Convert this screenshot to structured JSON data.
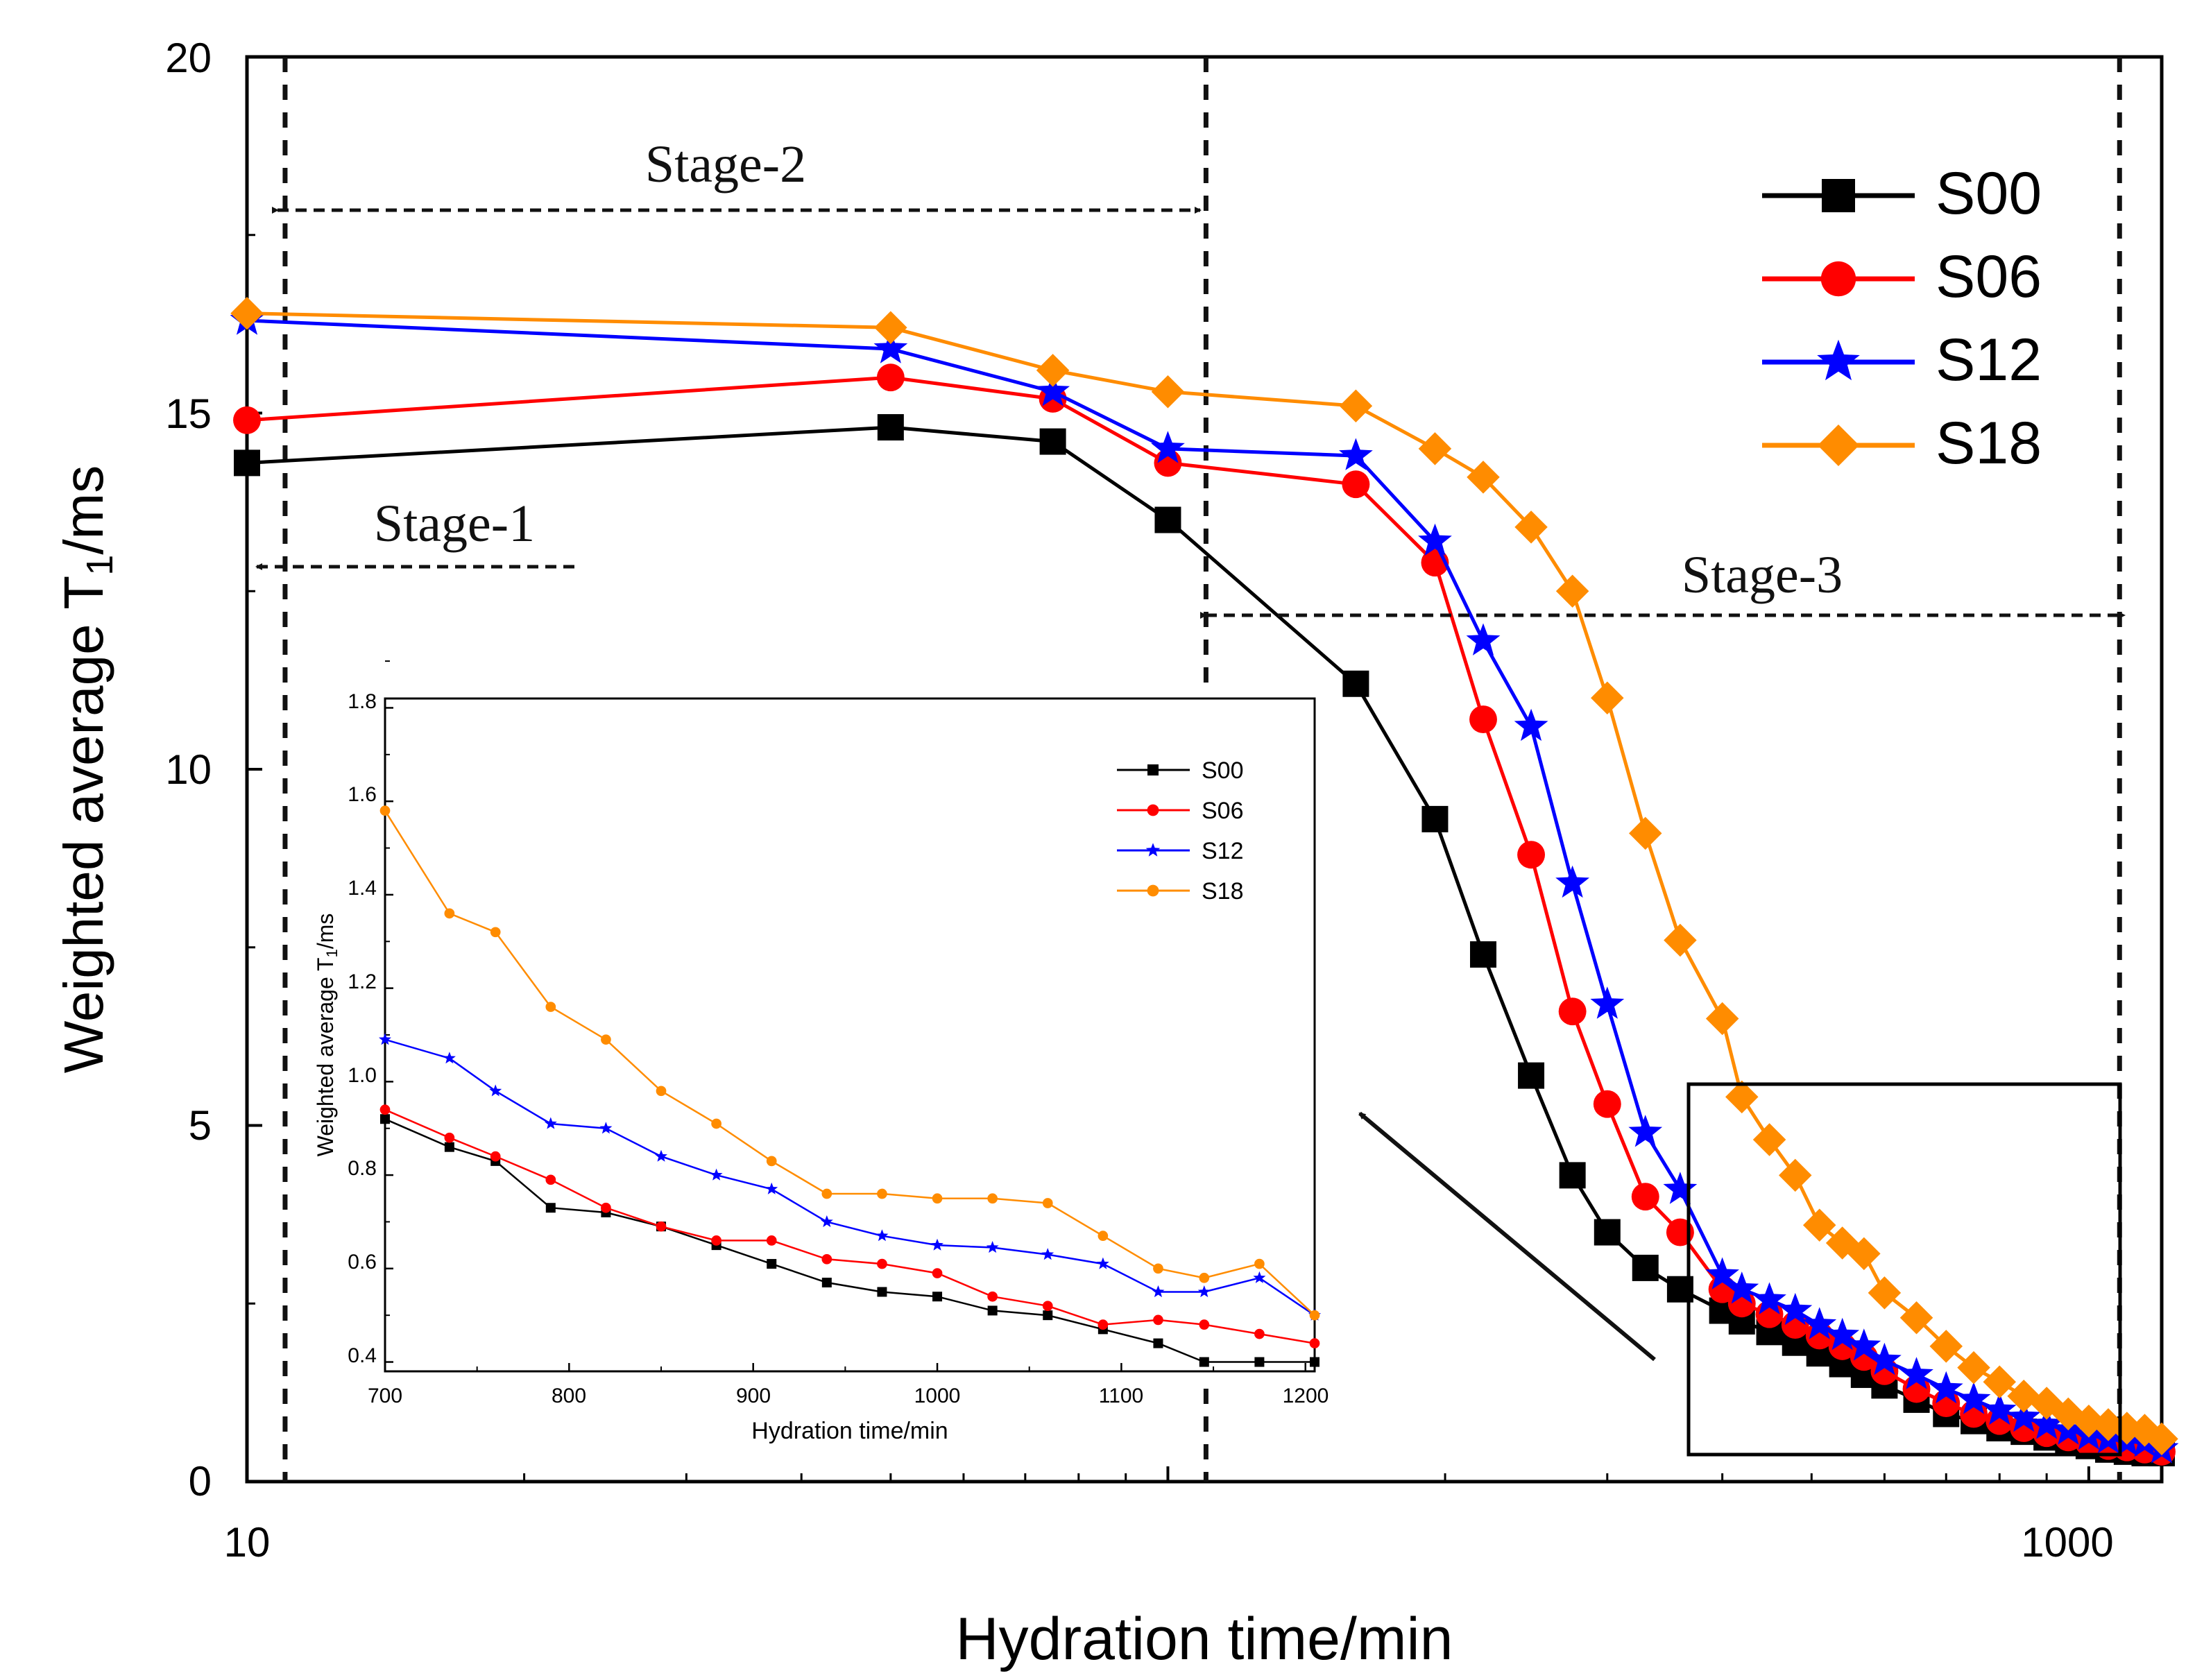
{
  "main": {
    "type": "line",
    "xscale": "log",
    "xlim": [
      10,
      1200
    ],
    "ylim": [
      0,
      20
    ],
    "xlabel": "Hydration time/min",
    "ylabel_main": "Weighted average T",
    "ylabel_sub": "1",
    "ylabel_unit": "/ms",
    "xticks": [
      10,
      1000
    ],
    "xtick_labels": [
      "10",
      "1000"
    ],
    "yticks": [
      0,
      5,
      10,
      15,
      20
    ],
    "ytick_labels": [
      "0",
      "5",
      "10",
      "15",
      "20"
    ],
    "legend_position": "top-right",
    "series": [
      {
        "name": "S00",
        "color": "#000000",
        "marker": "square",
        "x": [
          10,
          50,
          75,
          100,
          160,
          195,
          220,
          248,
          275,
          300,
          330,
          360,
          400,
          420,
          450,
          480,
          510,
          540,
          570,
          600,
          650,
          700,
          750,
          800,
          850,
          900,
          950,
          1000,
          1050,
          1100,
          1150,
          1200
        ],
        "y": [
          14.3,
          14.8,
          14.6,
          13.5,
          11.2,
          9.3,
          7.4,
          5.7,
          4.3,
          3.5,
          3.0,
          2.7,
          2.4,
          2.25,
          2.1,
          1.95,
          1.8,
          1.65,
          1.5,
          1.35,
          1.15,
          0.95,
          0.85,
          0.75,
          0.7,
          0.62,
          0.55,
          0.5,
          0.45,
          0.42,
          0.4,
          0.4
        ]
      },
      {
        "name": "S06",
        "color": "#ff0000",
        "marker": "circle",
        "x": [
          10,
          50,
          75,
          100,
          160,
          195,
          220,
          248,
          275,
          300,
          330,
          360,
          400,
          420,
          450,
          480,
          510,
          540,
          570,
          600,
          650,
          700,
          750,
          800,
          850,
          900,
          950,
          1000,
          1050,
          1100,
          1150,
          1200
        ],
        "y": [
          14.9,
          15.5,
          15.2,
          14.3,
          14.0,
          12.9,
          10.7,
          8.8,
          6.6,
          5.3,
          4.0,
          3.5,
          2.7,
          2.5,
          2.35,
          2.2,
          2.05,
          1.9,
          1.75,
          1.55,
          1.3,
          1.1,
          0.95,
          0.85,
          0.75,
          0.68,
          0.62,
          0.55,
          0.5,
          0.48,
          0.45,
          0.42
        ]
      },
      {
        "name": "S12",
        "color": "#0000ff",
        "marker": "star",
        "x": [
          10,
          50,
          75,
          100,
          160,
          195,
          220,
          248,
          275,
          300,
          330,
          360,
          400,
          420,
          450,
          480,
          510,
          540,
          570,
          600,
          650,
          700,
          750,
          800,
          850,
          900,
          950,
          1000,
          1050,
          1100,
          1150,
          1200
        ],
        "y": [
          16.3,
          15.9,
          15.3,
          14.5,
          14.4,
          13.2,
          11.8,
          10.6,
          8.4,
          6.7,
          4.9,
          4.1,
          2.9,
          2.7,
          2.55,
          2.4,
          2.2,
          2.05,
          1.9,
          1.7,
          1.5,
          1.3,
          1.15,
          1.0,
          0.9,
          0.8,
          0.72,
          0.65,
          0.6,
          0.56,
          0.55,
          0.46
        ]
      },
      {
        "name": "S18",
        "color": "#ff8c00",
        "marker": "diamond",
        "x": [
          10,
          50,
          75,
          100,
          160,
          195,
          220,
          248,
          275,
          300,
          330,
          360,
          400,
          420,
          450,
          480,
          510,
          540,
          570,
          600,
          650,
          700,
          750,
          800,
          850,
          900,
          950,
          1000,
          1050,
          1100,
          1150,
          1200
        ],
        "y": [
          16.4,
          16.2,
          15.6,
          15.3,
          15.1,
          14.5,
          14.1,
          13.4,
          12.5,
          11.0,
          9.1,
          7.6,
          6.5,
          5.4,
          4.8,
          4.3,
          3.6,
          3.35,
          3.2,
          2.65,
          2.3,
          1.9,
          1.6,
          1.4,
          1.2,
          1.1,
          0.95,
          0.85,
          0.8,
          0.75,
          0.72,
          0.6
        ]
      }
    ],
    "stages": [
      {
        "label": "Stage-1"
      },
      {
        "label": "Stage-2"
      },
      {
        "label": "Stage-3"
      }
    ]
  },
  "inset": {
    "type": "line",
    "xlim": [
      700,
      1205
    ],
    "ylim": [
      0.38,
      1.82
    ],
    "xlabel": "Hydration time/min",
    "ylabel_main": "Weighted average T",
    "ylabel_sub": "1",
    "ylabel_unit": "/ms",
    "xticks": [
      700,
      800,
      900,
      1000,
      1100,
      1200
    ],
    "xtick_labels": [
      "700",
      "800",
      "900",
      "1000",
      "1100",
      "1200"
    ],
    "yticks": [
      0.4,
      0.6,
      0.8,
      1.0,
      1.2,
      1.4,
      1.6,
      1.8
    ],
    "ytick_labels": [
      "0.4",
      "0.6",
      "0.8",
      "1.0",
      "1.2",
      "1.4",
      "1.6",
      "1.8"
    ],
    "legend_position": "top-right",
    "x": [
      700,
      735,
      760,
      790,
      820,
      850,
      880,
      910,
      940,
      970,
      1000,
      1030,
      1060,
      1090,
      1120,
      1145,
      1175,
      1205
    ],
    "series": [
      {
        "name": "S00",
        "color": "#000000",
        "y": [
          0.92,
          0.86,
          0.83,
          0.73,
          0.72,
          0.69,
          0.65,
          0.61,
          0.57,
          0.55,
          0.54,
          0.51,
          0.5,
          0.47,
          0.44,
          0.4,
          0.4,
          0.4
        ]
      },
      {
        "name": "S06",
        "color": "#ff0000",
        "y": [
          0.94,
          0.88,
          0.84,
          0.79,
          0.73,
          0.69,
          0.66,
          0.66,
          0.62,
          0.61,
          0.59,
          0.54,
          0.52,
          0.48,
          0.49,
          0.48,
          0.46,
          0.44
        ]
      },
      {
        "name": "S12",
        "color": "#0000ff",
        "y": [
          1.09,
          1.05,
          0.98,
          0.91,
          0.9,
          0.84,
          0.8,
          0.77,
          0.7,
          0.67,
          0.65,
          0.645,
          0.63,
          0.61,
          0.55,
          0.55,
          0.58,
          0.5
        ]
      },
      {
        "name": "S18",
        "color": "#ff8c00",
        "y": [
          1.58,
          1.36,
          1.32,
          1.16,
          1.09,
          0.98,
          0.91,
          0.83,
          0.76,
          0.76,
          0.75,
          0.75,
          0.74,
          0.67,
          0.6,
          0.58,
          0.61,
          0.5
        ]
      }
    ]
  }
}
